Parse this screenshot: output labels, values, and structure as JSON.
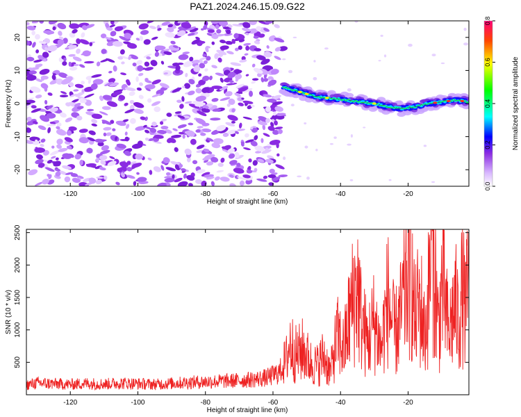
{
  "figure": {
    "title": "PAZ1.2024.246.15.09.G22"
  },
  "chart_data": [
    {
      "type": "heatmap",
      "xlabel": "Height of straight line (km)",
      "ylabel": "Frequency (Hz)",
      "xlim": [
        -133,
        -2
      ],
      "ylim": [
        -25,
        25
      ],
      "xticks": [
        -120,
        -100,
        -80,
        -60,
        -40,
        -20
      ],
      "yticks": [
        -20,
        -10,
        0,
        10,
        20
      ],
      "colorbar": {
        "label": "Normalized spectral amplitude",
        "range": [
          0,
          0.8
        ],
        "ticks": [
          0.0,
          0.2,
          0.4,
          0.6,
          0.8
        ],
        "colormap": [
          "#ffffff",
          "#8a2be2",
          "#0000ff",
          "#00ffff",
          "#00ff00",
          "#ffff00",
          "#ff0000"
        ]
      },
      "signal_track": {
        "x": [
          -57,
          -52,
          -47,
          -42,
          -38,
          -34,
          -30,
          -26,
          -22,
          -18,
          -14,
          -10,
          -6,
          -2
        ],
        "freq": [
          5,
          3.5,
          2,
          1.5,
          1,
          0.5,
          0,
          -1,
          -1.5,
          -1,
          0,
          0.5,
          1,
          0.5
        ]
      },
      "noise_region_x": [
        -133,
        -57
      ],
      "colors": {
        "noise": "#8a2be2",
        "axes": "#000000"
      }
    },
    {
      "type": "line",
      "xlabel": "Height of straight line (km)",
      "ylabel": "SNR (10 * v/v)",
      "xlim": [
        -133,
        -2
      ],
      "ylim": [
        0,
        2550
      ],
      "xticks": [
        -120,
        -100,
        -80,
        -60,
        -40,
        -20
      ],
      "yticks": [
        500,
        1000,
        1500,
        2000,
        2500
      ],
      "series": [
        {
          "color": "#ee2222",
          "x": [
            -133,
            -130,
            -125,
            -120,
            -115,
            -110,
            -105,
            -100,
            -95,
            -90,
            -85,
            -80,
            -75,
            -70,
            -65,
            -62,
            -60,
            -58,
            -56,
            -55,
            -53,
            -51,
            -49,
            -47,
            -45,
            -43,
            -41,
            -39,
            -37,
            -35,
            -34,
            -32,
            -30,
            -28,
            -26,
            -24,
            -22,
            -20,
            -19,
            -18,
            -17,
            -16,
            -15,
            -14,
            -13,
            -12,
            -11,
            -10,
            -9,
            -8,
            -7,
            -6,
            -5,
            -4,
            -3,
            -2
          ],
          "values": [
            150,
            180,
            170,
            160,
            175,
            165,
            180,
            170,
            160,
            175,
            190,
            200,
            210,
            220,
            240,
            260,
            300,
            350,
            550,
            800,
            600,
            700,
            500,
            450,
            600,
            350,
            900,
            700,
            1300,
            1700,
            1200,
            800,
            1150,
            700,
            1500,
            900,
            1250,
            1900,
            1800,
            1100,
            1400,
            1300,
            900,
            1500,
            2520,
            1800,
            1000,
            1700,
            1400,
            900,
            1200,
            1400,
            1100,
            1600,
            1300,
            1700
          ]
        }
      ]
    }
  ]
}
